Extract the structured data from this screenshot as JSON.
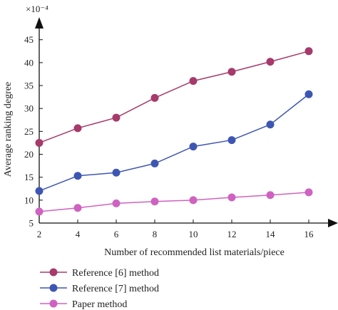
{
  "chart_data": {
    "type": "line",
    "title": "",
    "xlabel": "Number of recommended list materials/piece",
    "ylabel": "Average ranking degree",
    "y_multiplier_label": "×10⁻⁴",
    "x": [
      2,
      4,
      6,
      8,
      10,
      12,
      14,
      16
    ],
    "x_ticks": [
      "2",
      "4",
      "6",
      "8",
      "10",
      "12",
      "14",
      "16"
    ],
    "xlim": [
      2,
      17
    ],
    "y_ticks": [
      "5",
      "10",
      "15",
      "20",
      "25",
      "30",
      "35",
      "40",
      "45"
    ],
    "y_tick_values": [
      5,
      10,
      15,
      20,
      25,
      30,
      35,
      40,
      45
    ],
    "ylim": [
      5,
      49
    ],
    "grid": false,
    "legend_position": "bottom-left",
    "series": [
      {
        "name": "Reference [6] method",
        "color": "#a63a6a",
        "values": [
          22.5,
          25.7,
          28.0,
          32.3,
          36.0,
          38.0,
          40.2,
          42.5
        ]
      },
      {
        "name": "Reference [7] method",
        "color": "#3e56b3",
        "values": [
          12.0,
          15.3,
          16.0,
          18.0,
          21.7,
          23.1,
          26.5,
          33.1
        ]
      },
      {
        "name": "Paper method",
        "color": "#cf62c0",
        "values": [
          7.5,
          8.3,
          9.3,
          9.7,
          10.0,
          10.6,
          11.1,
          11.7
        ]
      }
    ]
  }
}
